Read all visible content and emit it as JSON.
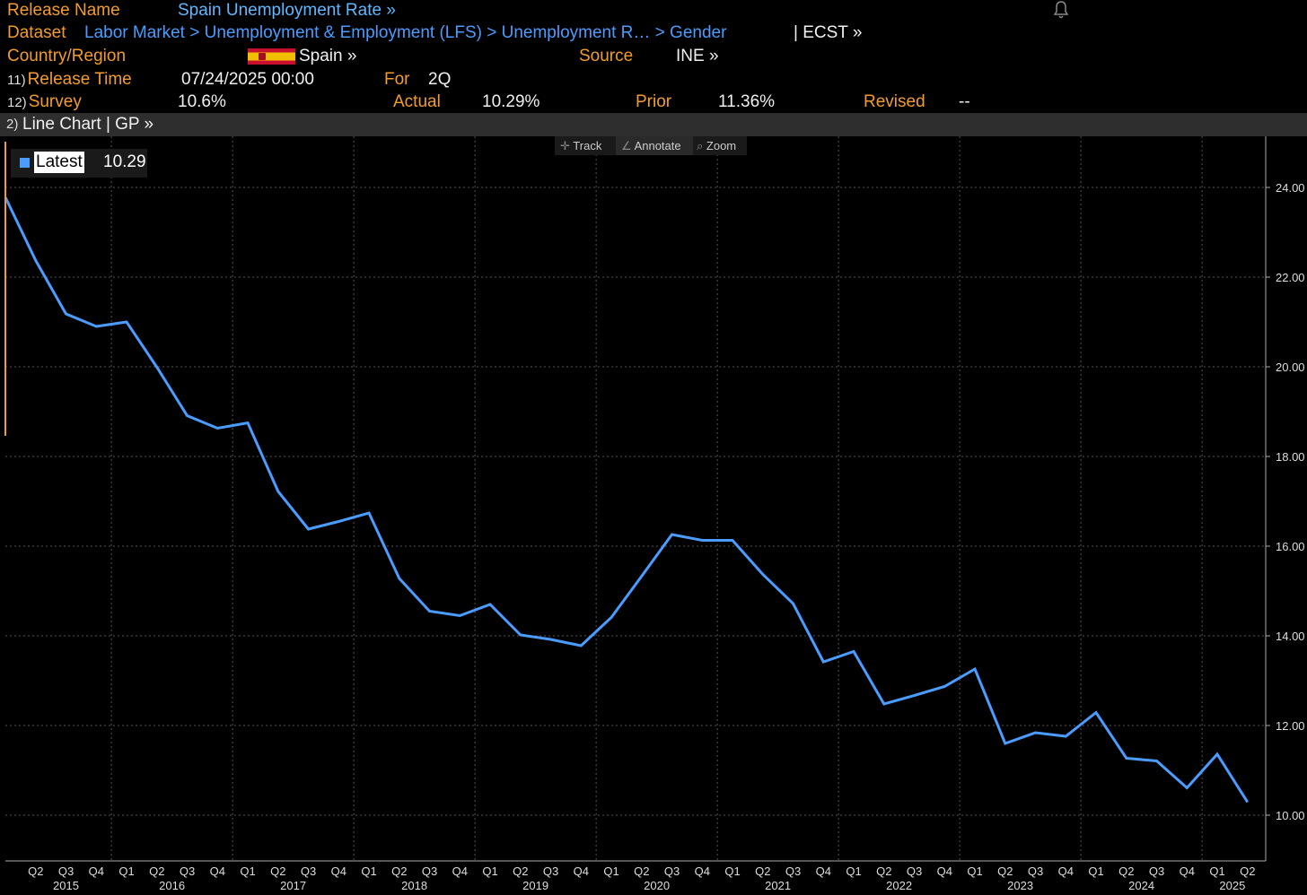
{
  "header": {
    "release_name_label": "Release Name",
    "release_name_value": "Spain Unemployment Rate »",
    "dataset_label": "Dataset",
    "dataset_path": "Labor Market > Unemployment & Employment (LFS) > Unemployment R… > Gender",
    "dataset_suffix": "| ECST »",
    "country_label": "Country/Region",
    "country_value": "Spain »",
    "source_label": "Source",
    "source_value": "INE »",
    "release_time_num": "11)",
    "release_time_label": "Release Time",
    "release_time_value": "07/24/2025 00:00",
    "for_label": "For",
    "for_value": "2Q",
    "survey_num": "12)",
    "survey_label": "Survey",
    "survey_value": "10.6%",
    "actual_label": "Actual",
    "actual_value": "10.29%",
    "prior_label": "Prior",
    "prior_value": "11.36%",
    "revised_label": "Revised",
    "revised_value": "--"
  },
  "chart_bar": {
    "num": "2)",
    "label": "Line Chart | GP »"
  },
  "toolbar": {
    "track": "Track",
    "annotate": "Annotate",
    "zoom": "Zoom"
  },
  "legend": {
    "label": "Latest",
    "value": "10.29"
  },
  "colors": {
    "line": "#4a9cff",
    "accent": "#f39c2b",
    "grid": "#555555"
  },
  "chart_data": {
    "type": "line",
    "x": [
      "2015 Q1",
      "2015 Q2",
      "2015 Q3",
      "2015 Q4",
      "2016 Q1",
      "2016 Q2",
      "2016 Q3",
      "2016 Q4",
      "2017 Q1",
      "2017 Q2",
      "2017 Q3",
      "2017 Q4",
      "2018 Q1",
      "2018 Q2",
      "2018 Q3",
      "2018 Q4",
      "2019 Q1",
      "2019 Q2",
      "2019 Q3",
      "2019 Q4",
      "2020 Q1",
      "2020 Q2",
      "2020 Q3",
      "2020 Q4",
      "2021 Q1",
      "2021 Q2",
      "2021 Q3",
      "2021 Q4",
      "2022 Q1",
      "2022 Q2",
      "2022 Q3",
      "2022 Q4",
      "2023 Q1",
      "2023 Q2",
      "2023 Q3",
      "2023 Q4",
      "2024 Q1",
      "2024 Q2",
      "2024 Q3",
      "2024 Q4",
      "2025 Q1",
      "2025 Q2"
    ],
    "values": [
      23.78,
      22.37,
      21.18,
      20.9,
      21.0,
      19.99,
      18.91,
      18.63,
      18.75,
      17.22,
      16.38,
      16.55,
      16.74,
      15.28,
      14.55,
      14.45,
      14.7,
      14.02,
      13.92,
      13.78,
      14.41,
      15.33,
      16.26,
      16.13,
      16.13,
      15.37,
      14.72,
      13.42,
      13.65,
      12.48,
      12.67,
      12.87,
      13.26,
      11.6,
      11.84,
      11.76,
      12.29,
      11.27,
      11.21,
      10.61,
      11.36,
      10.29
    ],
    "ticks_quarter": [
      "Q2",
      "Q3",
      "Q4",
      "Q1",
      "Q2",
      "Q3",
      "Q4",
      "Q1",
      "Q2",
      "Q3",
      "Q4",
      "Q1",
      "Q2",
      "Q3",
      "Q4",
      "Q1",
      "Q2",
      "Q3",
      "Q4",
      "Q1",
      "Q2",
      "Q3",
      "Q4",
      "Q1",
      "Q2",
      "Q3",
      "Q4",
      "Q1",
      "Q2",
      "Q3",
      "Q4",
      "Q1",
      "Q2",
      "Q3",
      "Q4",
      "Q1",
      "Q2",
      "Q3",
      "Q4",
      "Q1",
      "Q2"
    ],
    "year_labels": [
      "2015",
      "2016",
      "2017",
      "2018",
      "2019",
      "2020",
      "2021",
      "2022",
      "2023",
      "2024",
      "2025"
    ],
    "y_ticks": [
      "10.00",
      "12.00",
      "14.00",
      "16.00",
      "18.00",
      "20.00",
      "22.00",
      "24.00"
    ],
    "ylim": [
      9.0,
      25.0
    ],
    "grid": true,
    "title": "",
    "xlabel": "",
    "ylabel": ""
  }
}
